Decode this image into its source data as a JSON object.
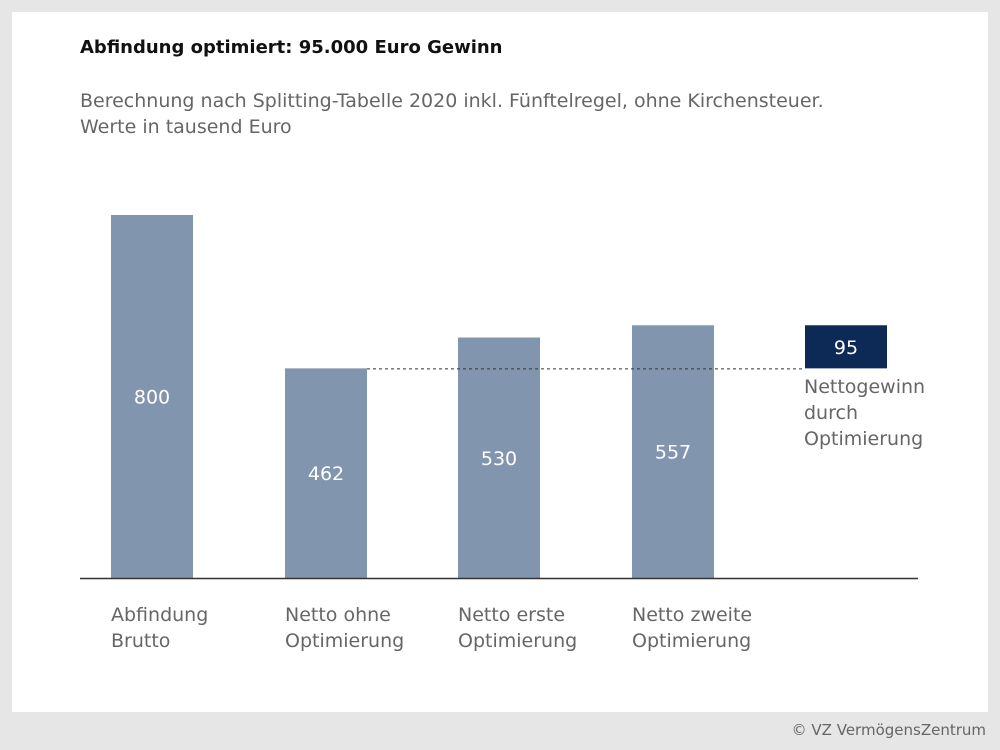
{
  "header": {
    "title": "Abfindung optimiert: 95.000 Euro Gewinn",
    "subtitle_line1": "Berechnung nach Splitting-Tabelle 2020 inkl. Fünftelregel, ohne Kirchensteuer.",
    "subtitle_line2": "Werte in tausend Euro"
  },
  "footer": {
    "copyright": "© VZ VermögensZentrum"
  },
  "colors": {
    "bar": "#8196ae",
    "highlight": "#0d2a57",
    "axis": "#333333",
    "label_text": "#666666",
    "value_text": "#ffffff"
  },
  "chart_data": {
    "type": "bar",
    "categories": [
      [
        "Abfindung",
        "Brutto"
      ],
      [
        "Netto ohne",
        "Optimierung"
      ],
      [
        "Netto erste",
        "Optimierung"
      ],
      [
        "Netto zweite",
        "Optimierung"
      ]
    ],
    "values": [
      800,
      462,
      530,
      557
    ],
    "value_labels": [
      "800",
      "462",
      "530",
      "557"
    ],
    "ylim": [
      0,
      800
    ],
    "grid": false,
    "reference_line": {
      "from_category": 1,
      "value": 462,
      "style": "dashed"
    },
    "highlight": {
      "value": 95,
      "label": "95",
      "range": [
        462,
        557
      ],
      "annotation": [
        "Nettogewinn",
        "durch",
        "Optimierung"
      ]
    }
  }
}
